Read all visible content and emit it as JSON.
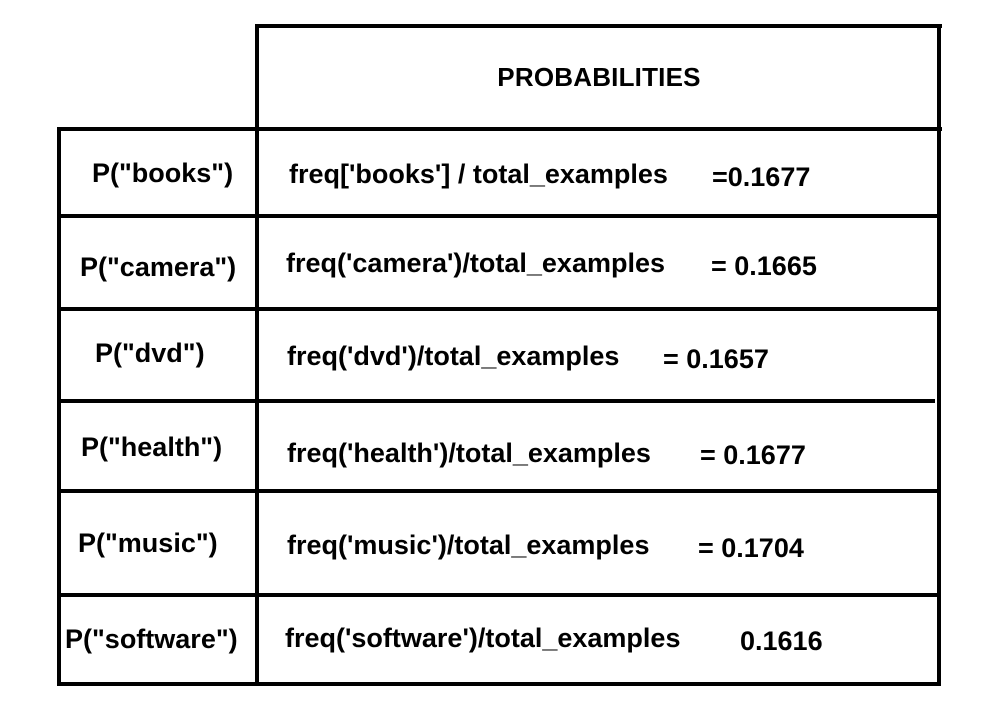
{
  "table": {
    "header": "PROBABILITIES",
    "rows": [
      {
        "label": "P(\"books\")",
        "formula": "freq['books'] / total_examples",
        "value": "=0.1677"
      },
      {
        "label": "P(\"camera\")",
        "formula": "freq('camera')/total_examples",
        "value": "= 0.1665"
      },
      {
        "label": "P(\"dvd\")",
        "formula": "freq('dvd')/total_examples",
        "value": "= 0.1657"
      },
      {
        "label": "P(\"health\")",
        "formula": "freq('health')/total_examples",
        "value": "= 0.1677"
      },
      {
        "label": "P(\"music\")",
        "formula": "freq('music')/total_examples",
        "value": "= 0.1704"
      },
      {
        "label": "P(\"software\")",
        "formula": "freq('software')/total_examples",
        "value": "0.1616"
      }
    ]
  }
}
